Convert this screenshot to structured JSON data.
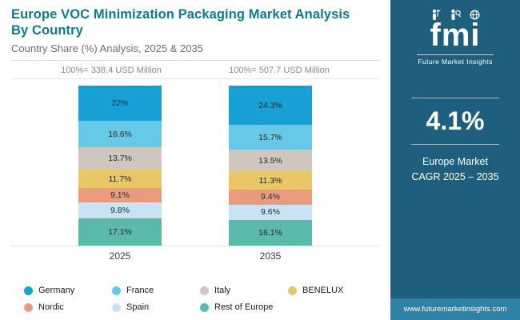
{
  "header": {
    "title": "Europe VOC Minimization Packaging Market Analysis By Country",
    "subtitle": "Country Share (%) Analysis, 2025 & 2035"
  },
  "chart_data": {
    "type": "bar",
    "subtype": "100-percent-stacked-column",
    "title": "Europe VOC Minimization Packaging Market Analysis By Country",
    "subtitle": "Country Share (%) Analysis, 2025 & 2035",
    "unit": "%",
    "ylim": [
      0,
      100
    ],
    "series": [
      "Germany",
      "France",
      "Italy",
      "BENELUX",
      "Nordic",
      "Spain",
      "Rest of Europe"
    ],
    "colors": [
      "#18a0d4",
      "#66c9e6",
      "#cfc6be",
      "#e9c666",
      "#ea9b7d",
      "#c8e3f4",
      "#5ab9a8"
    ],
    "columns": [
      {
        "year": "2025",
        "total_label": "100%= 338.4 USD Million",
        "values": [
          22,
          16.6,
          13.7,
          11.7,
          9.1,
          9.8,
          17.1
        ],
        "value_labels": [
          "22%",
          "16.6%",
          "13.7%",
          "11.7%",
          "9.1%",
          "9.8%",
          "17.1%"
        ]
      },
      {
        "year": "2035",
        "total_label": "100%= 507.7 USD Million",
        "values": [
          24.3,
          15.7,
          13.5,
          11.3,
          9.4,
          9.6,
          16.1
        ],
        "value_labels": [
          "24.3%",
          "15.7%",
          "13.5%",
          "11.3%",
          "9.4%",
          "9.6%",
          "16.1%"
        ]
      }
    ],
    "legend_position": "bottom"
  },
  "legend": {
    "items": [
      {
        "label": "Germany",
        "color": "#18a0d4"
      },
      {
        "label": "France",
        "color": "#66c9e6"
      },
      {
        "label": "Italy",
        "color": "#cfc6be"
      },
      {
        "label": "BENELUX",
        "color": "#e9c666"
      },
      {
        "label": "Nordic",
        "color": "#ea9b7d"
      },
      {
        "label": "Spain",
        "color": "#c8e3f4"
      },
      {
        "label": "Rest of Europe",
        "color": "#5ab9a8"
      }
    ]
  },
  "sidebar": {
    "logo_text": "fmi",
    "logo_subtext": "Future Market Insights",
    "cagr_value": "4.1%",
    "cagr_label_line1": "Europe Market",
    "cagr_label_line2": "CAGR 2025 – 2035",
    "website": "www.futuremarketinsights.com",
    "background_color": "#1e5f7e",
    "footer_color": "#2f81a6"
  }
}
